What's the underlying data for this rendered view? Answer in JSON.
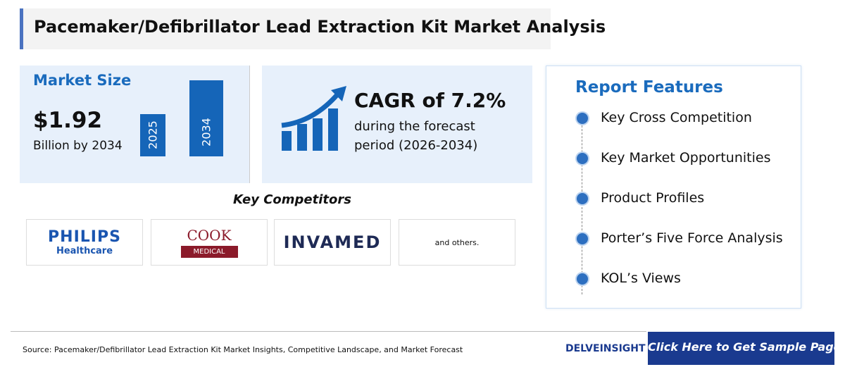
{
  "header": {
    "title": "Pacemaker/Defibrillator Lead Extraction Kit Market Analysis"
  },
  "market_size": {
    "heading": "Market Size",
    "value": "$1.92",
    "unit": "Billion by 2034",
    "bar_labels": [
      "2025",
      "2034"
    ]
  },
  "cagr": {
    "heading": "CAGR of 7.2%",
    "line1": "during the forecast",
    "line2": "period (2026-2034)"
  },
  "competitors": {
    "heading": "Key Competitors",
    "logos": [
      {
        "name": "PHILIPS",
        "sub": "Healthcare"
      },
      {
        "name": "COOK",
        "sub": "MEDICAL"
      },
      {
        "name": "INVAMED"
      }
    ],
    "others": "and others."
  },
  "report_features": {
    "heading": "Report Features",
    "items": [
      "Key Cross Competition",
      "Key Market Opportunities",
      "Product Profiles",
      "Porter’s Five Force Analysis",
      "KOL’s Views"
    ]
  },
  "footer": {
    "source": "Source: Pacemaker/Defibrillator Lead Extraction Kit Market Insights, Competitive Landscape, and Market Forecast",
    "brand": "DELVEINSIGHT",
    "button": "Click Here to Get Sample Page"
  }
}
